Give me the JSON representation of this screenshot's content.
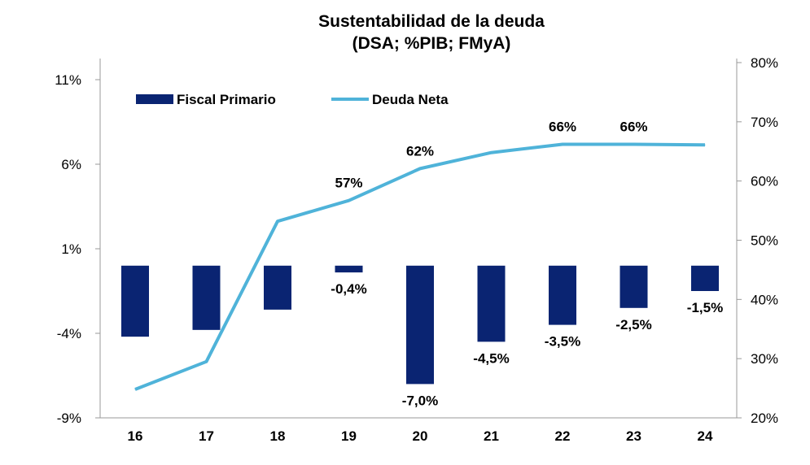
{
  "chart_data": {
    "type": "bar+line",
    "title": "Sustentabilidad de la deuda",
    "subtitle": "(DSA; %PIB; FMyA)",
    "categories": [
      "16",
      "17",
      "18",
      "19",
      "20",
      "21",
      "22",
      "23",
      "24"
    ],
    "y_left": {
      "ticks": [
        "11%",
        "6%",
        "1%",
        "-4%",
        "-9%"
      ],
      "range": [
        -9,
        11
      ]
    },
    "y_right": {
      "ticks": [
        "80%",
        "70%",
        "60%",
        "50%",
        "40%",
        "30%",
        "20%"
      ],
      "range": [
        20,
        80
      ]
    },
    "series": [
      {
        "name": "Fiscal Primario",
        "type": "bar",
        "axis": "left",
        "color": "#0a2472",
        "values": [
          -4.2,
          -3.8,
          -2.6,
          -0.4,
          -7.0,
          -4.5,
          -3.5,
          -2.5,
          -1.5
        ],
        "labels": [
          "",
          "",
          "",
          "-0,4%",
          "-7,0%",
          "-4,5%",
          "-3,5%",
          "-2,5%",
          "-1,5%"
        ]
      },
      {
        "name": "Deuda Neta",
        "type": "line",
        "axis": "right",
        "color": "#4fb3d9",
        "values": [
          24.8,
          29.5,
          53.2,
          56.7,
          62.1,
          64.8,
          66.2,
          66.2,
          66.1
        ],
        "labels": [
          "",
          "",
          "",
          "57%",
          "62%",
          "",
          "66%",
          "66%",
          ""
        ]
      }
    ],
    "legend": "top-left",
    "grid": false
  }
}
